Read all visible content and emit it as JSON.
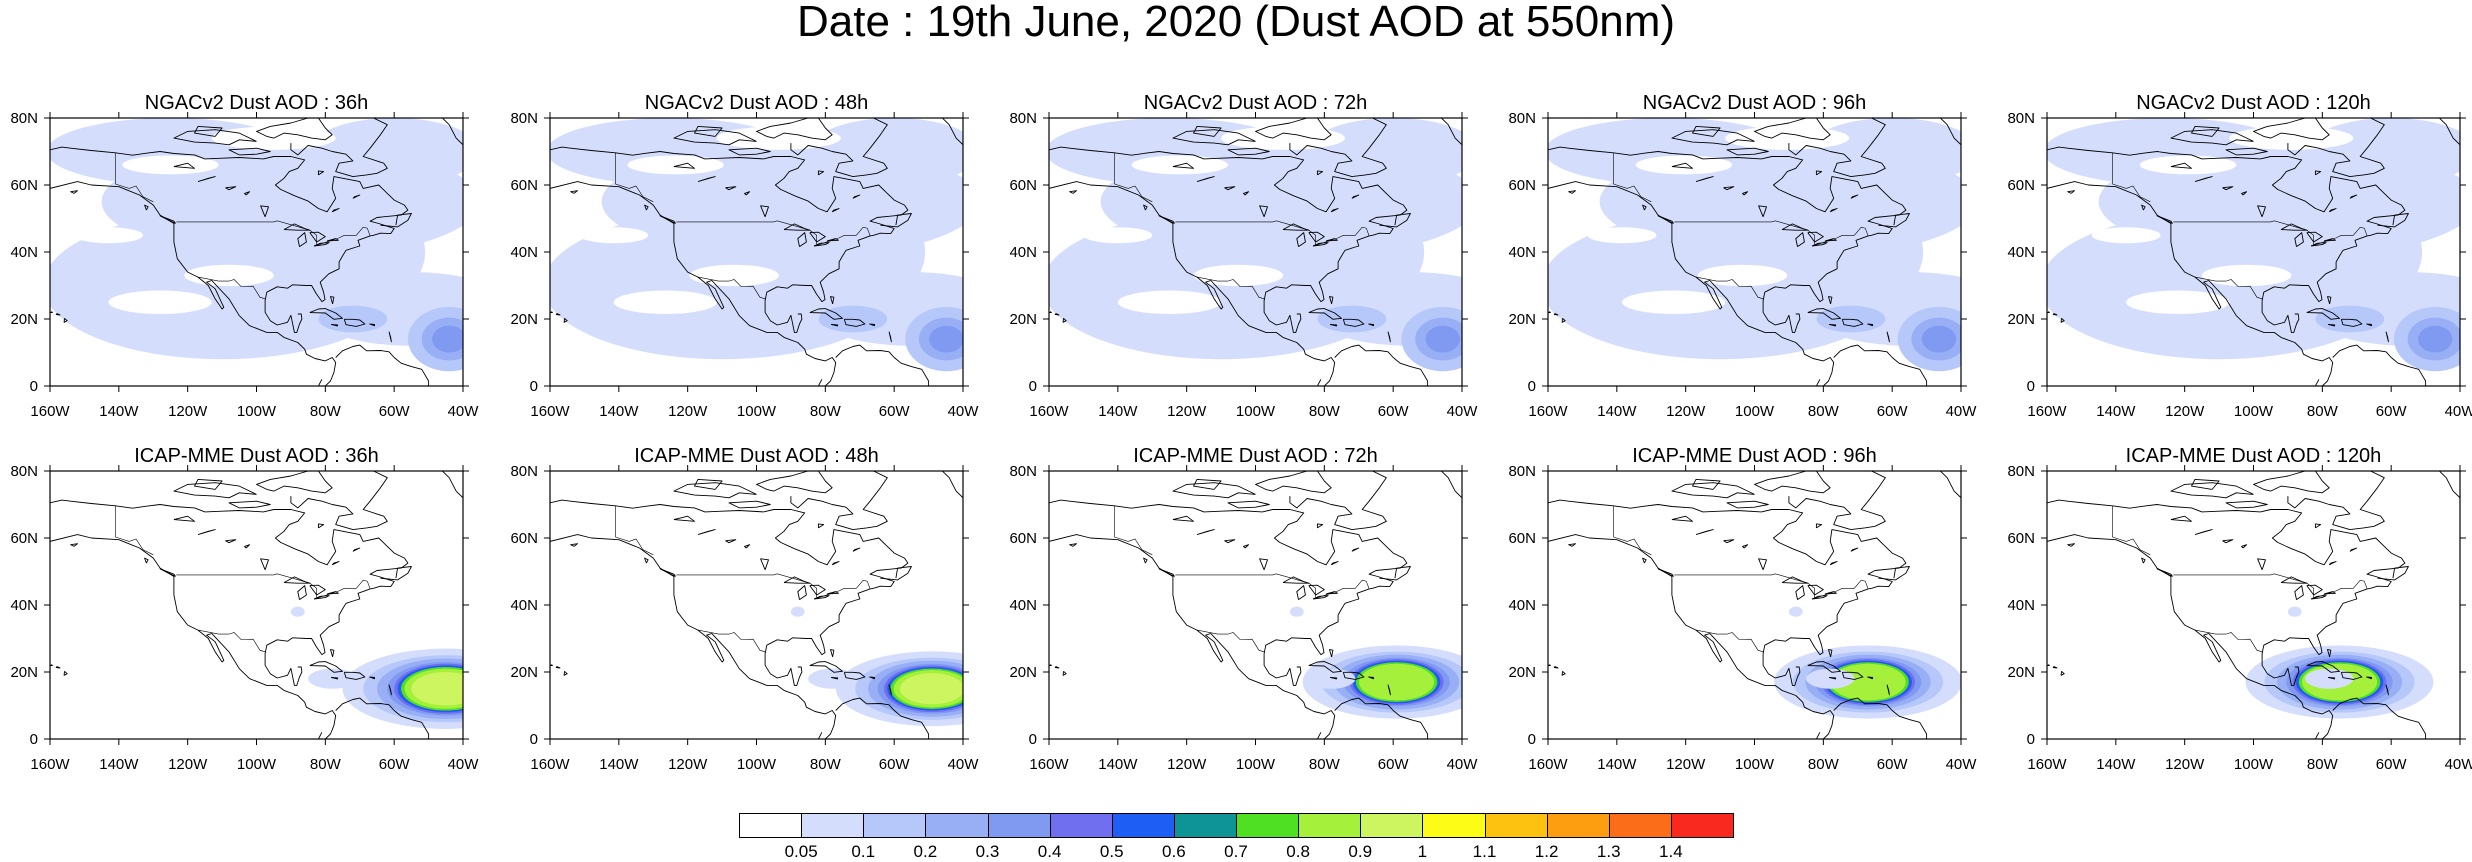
{
  "title": "Date : 19th June, 2020 (Dust AOD at 550nm)",
  "axes": {
    "x_ticks": [
      "160W",
      "140W",
      "120W",
      "100W",
      "80W",
      "60W",
      "40W"
    ],
    "y_ticks": [
      "80N",
      "60N",
      "40N",
      "20N",
      "0"
    ],
    "lon_range": [
      -160,
      -40
    ],
    "lat_range": [
      0,
      80
    ]
  },
  "colorbar": {
    "labels": [
      "0.05",
      "0.1",
      "0.2",
      "0.3",
      "0.4",
      "0.5",
      "0.6",
      "0.7",
      "0.8",
      "0.9",
      "1",
      "1.1",
      "1.2",
      "1.3",
      "1.4"
    ],
    "colors": [
      "#ffffff",
      "#d4defc",
      "#b6c7fa",
      "#98aff6",
      "#809af2",
      "#6f6ff0",
      "#1f5ef5",
      "#0e9496",
      "#4fe024",
      "#a5f03a",
      "#cdf560",
      "#fdfc16",
      "#fdc210",
      "#fc9e10",
      "#fb6d18",
      "#f9291f"
    ]
  },
  "panels": [
    {
      "title": "NGACv2 Dust AOD : 36h",
      "source": "NGACv2",
      "forecast_hour": 36
    },
    {
      "title": "NGACv2 Dust AOD : 48h",
      "source": "NGACv2",
      "forecast_hour": 48
    },
    {
      "title": "NGACv2 Dust AOD : 72h",
      "source": "NGACv2",
      "forecast_hour": 72
    },
    {
      "title": "NGACv2 Dust AOD : 96h",
      "source": "NGACv2",
      "forecast_hour": 96
    },
    {
      "title": "NGACv2 Dust AOD : 120h",
      "source": "NGACv2",
      "forecast_hour": 120
    },
    {
      "title": "ICAP-MME Dust AOD : 36h",
      "source": "ICAP-MME",
      "forecast_hour": 36,
      "plume": {
        "lon": -45,
        "lat": 15,
        "peak_aod": 1.0
      }
    },
    {
      "title": "ICAP-MME Dust AOD : 48h",
      "source": "ICAP-MME",
      "forecast_hour": 48,
      "plume": {
        "lon": -49,
        "lat": 15,
        "peak_aod": 0.9
      }
    },
    {
      "title": "ICAP-MME Dust AOD : 72h",
      "source": "ICAP-MME",
      "forecast_hour": 72,
      "plume": {
        "lon": -59,
        "lat": 17,
        "peak_aod": 0.8
      }
    },
    {
      "title": "ICAP-MME Dust AOD : 96h",
      "source": "ICAP-MME",
      "forecast_hour": 96,
      "plume": {
        "lon": -67,
        "lat": 17,
        "peak_aod": 0.8
      }
    },
    {
      "title": "ICAP-MME Dust AOD : 120h",
      "source": "ICAP-MME",
      "forecast_hour": 120,
      "plume": {
        "lon": -75,
        "lat": 17,
        "peak_aod": 0.8
      }
    }
  ]
}
